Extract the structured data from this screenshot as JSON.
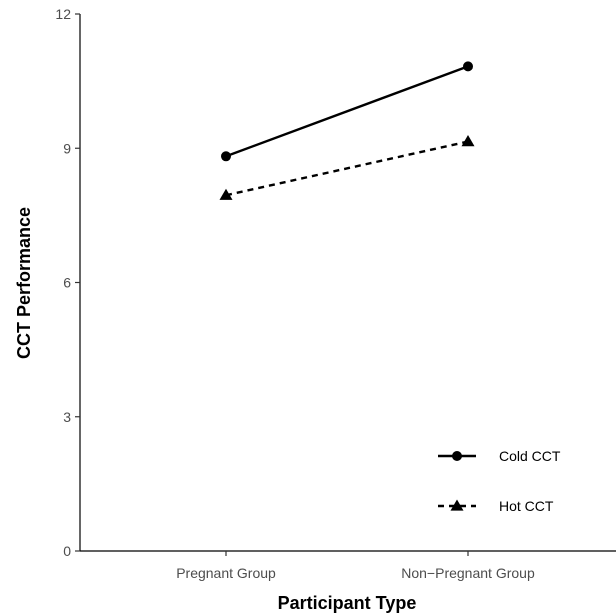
{
  "chart_data": {
    "type": "line",
    "xlabel": "Participant Type",
    "ylabel": "CCT Performance",
    "categories": [
      "Pregnant Group",
      "Non−Pregnant Group"
    ],
    "ylim": [
      0,
      12
    ],
    "yticks": [
      "0",
      "3",
      "6",
      "9",
      "12"
    ],
    "grid": false,
    "legend_position": "bottom-right",
    "series": [
      {
        "name": "Cold CCT",
        "values": [
          8.82,
          10.83
        ],
        "marker": "circle",
        "line": "solid",
        "color": "#000000"
      },
      {
        "name": "Hot CCT",
        "values": [
          7.95,
          9.15
        ],
        "marker": "triangle",
        "line": "dashed",
        "color": "#000000"
      }
    ]
  }
}
